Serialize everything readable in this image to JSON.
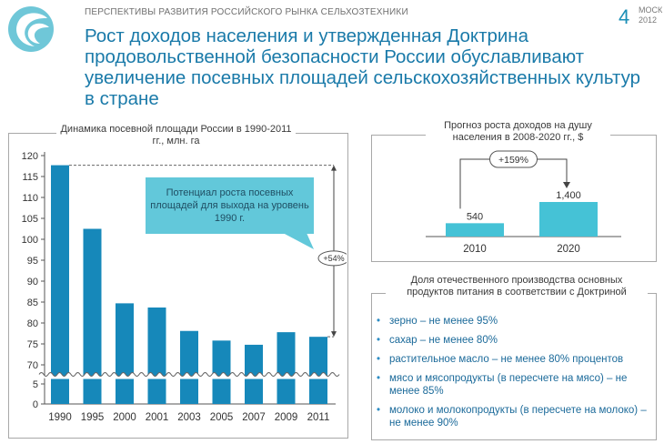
{
  "header": {
    "section_title": "ПЕРСПЕКТИВЫ РАЗВИТИЯ РОССИЙСКОГО РЫНКА СЕЛЬХОЗТЕХНИКИ",
    "page_number": "4",
    "city": "МОСК",
    "year": "2012",
    "title": "Рост доходов населения и утвержденная Доктрина продовольственной безопасности России обуславливают увеличение посевных площадей сельскохозяйственных культур в стране"
  },
  "colors": {
    "bar": "#1688ba",
    "income_bar": "#45c2d6",
    "callout": "#62c8da",
    "title": "#1a7aa9"
  },
  "chart_data": [
    {
      "type": "bar",
      "title": "Динамика посевной площади России в 1990-2011 гг., млн. га",
      "categories": [
        "1990",
        "1995",
        "2000",
        "2001",
        "2003",
        "2005",
        "2007",
        "2009",
        "2011"
      ],
      "values": [
        117.7,
        102.5,
        84.7,
        83.7,
        78.1,
        75.8,
        74.8,
        77.8,
        76.7
      ],
      "yticks": [
        0,
        5,
        70,
        75,
        80,
        85,
        90,
        95,
        100,
        105,
        110,
        115,
        120
      ],
      "axis_break": [
        5,
        70
      ],
      "ylim": [
        0,
        120
      ],
      "grid": false,
      "callout": "Потенциал роста посевных площадей для выхода на уровень 1990 г.",
      "growth_label": "+54%"
    },
    {
      "type": "bar",
      "title": "Прогноз роста доходов на душу населения в 2008-2020 гг., $",
      "categories": [
        "2010",
        "2020"
      ],
      "values": [
        540,
        1400
      ],
      "value_labels": [
        "540",
        "1,400"
      ],
      "growth_label": "+159%",
      "grid": false
    }
  ],
  "doctrine": {
    "title": "Доля отечественного производства основных продуктов питания в соответствии с Доктриной",
    "items": [
      "зерно – не менее 95%",
      "сахар – не менее 80%",
      "растительное масло – не менее 80% процентов",
      "мясо и мясопродукты  (в пересчете на мясо) – не менее 85%",
      "молоко и молокопродукты (в пересчете на молоко) – не менее 90%"
    ]
  }
}
